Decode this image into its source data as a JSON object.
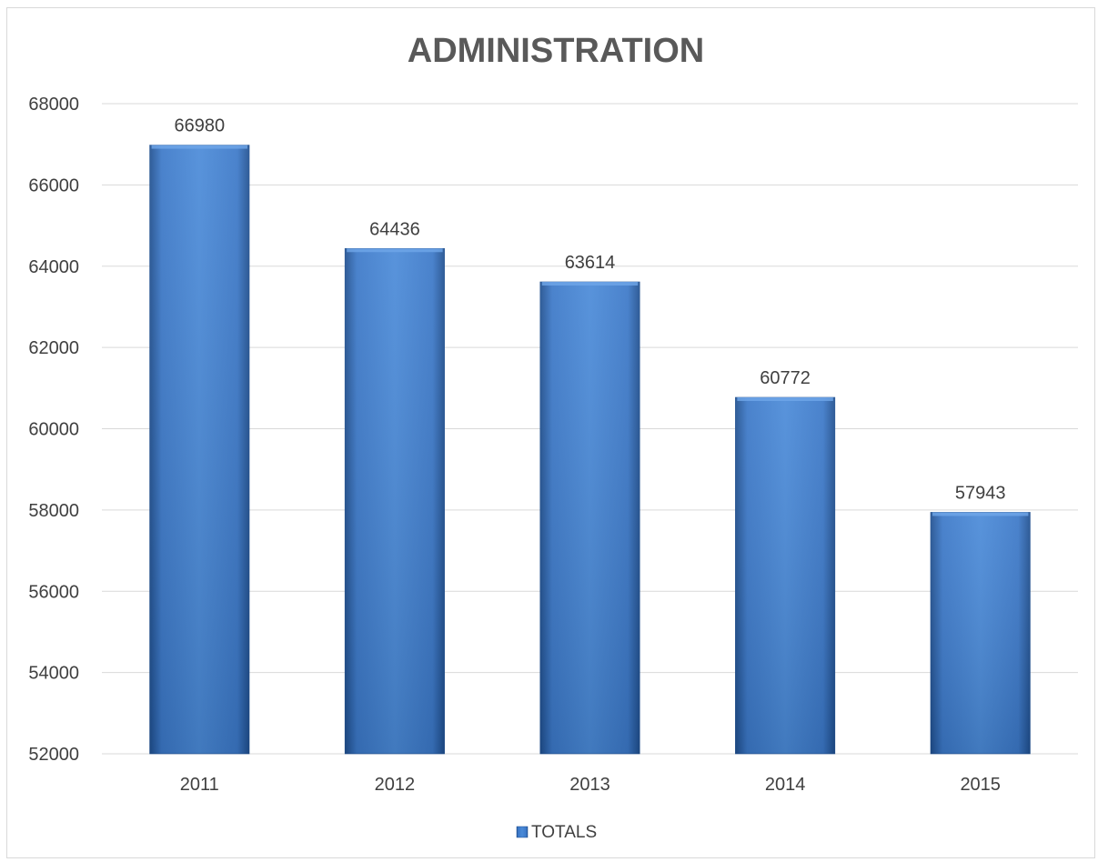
{
  "chart_data": {
    "type": "bar",
    "title": "ADMINISTRATION",
    "categories": [
      "2011",
      "2012",
      "2013",
      "2014",
      "2015"
    ],
    "series": [
      {
        "name": "TOTALS",
        "values": [
          66980,
          64436,
          63614,
          60772,
          57943
        ]
      }
    ],
    "data_labels": [
      "66980",
      "64436",
      "63614",
      "60772",
      "57943"
    ],
    "ylim": [
      52000,
      68000
    ],
    "yticks": [
      "52000",
      "54000",
      "56000",
      "58000",
      "60000",
      "62000",
      "64000",
      "66000",
      "68000"
    ],
    "xlabel": "",
    "ylabel": "",
    "grid": true,
    "legend_position": "bottom",
    "colors": {
      "bar": "#3f7fd0",
      "bar_light": "#4a90e2",
      "bar_dark": "#1f4f8f",
      "grid": "#d9d9d9",
      "text": "#404040",
      "title": "#595959"
    }
  }
}
